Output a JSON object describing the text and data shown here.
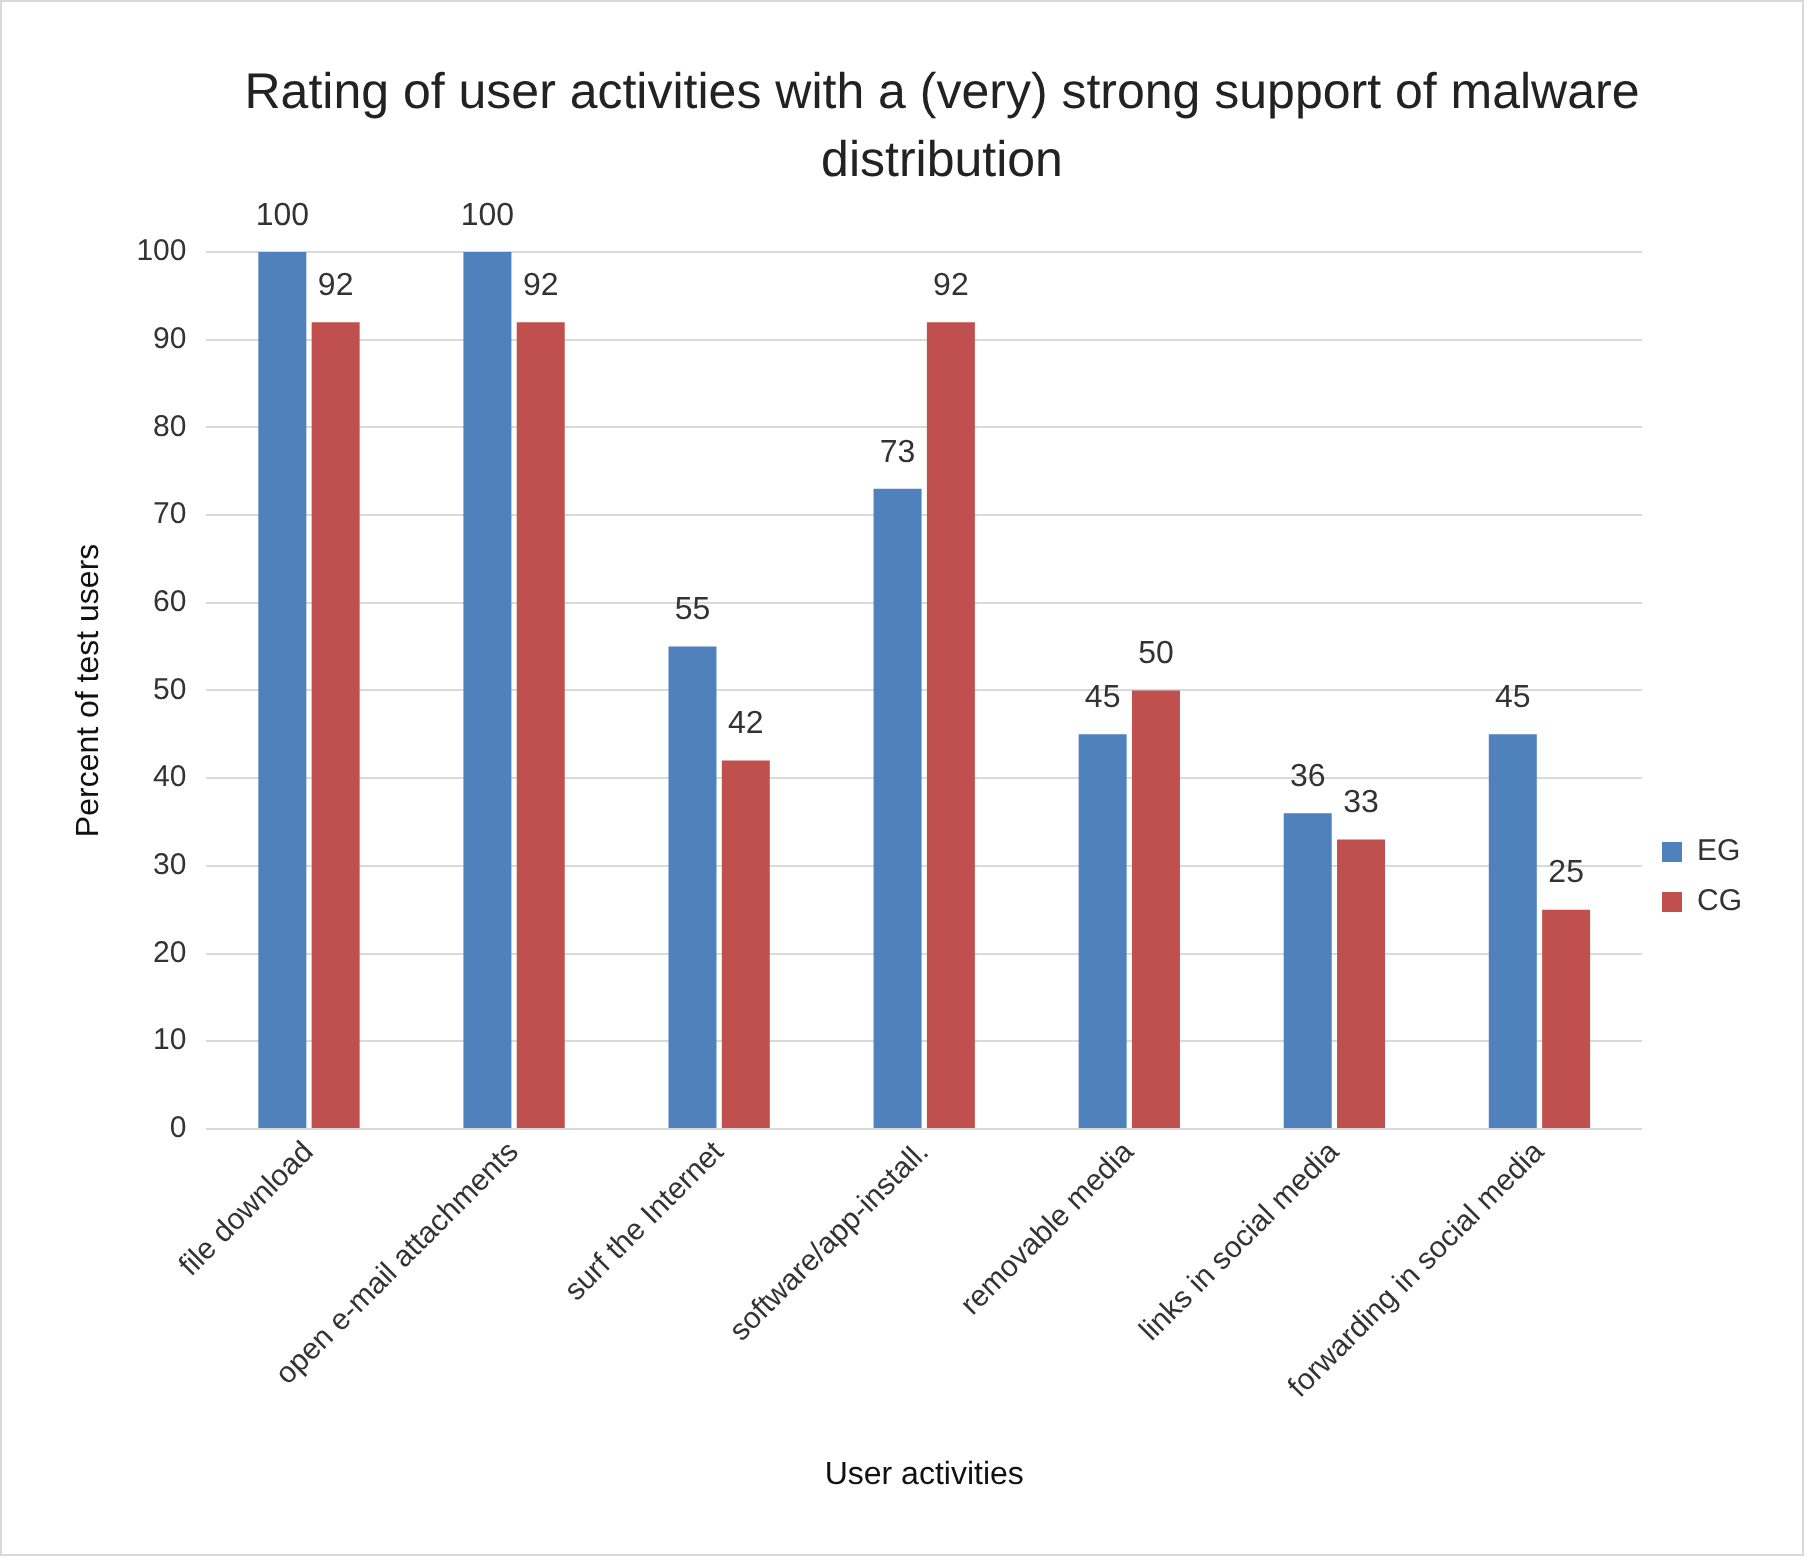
{
  "chart_data": {
    "type": "bar",
    "title": "Rating of user activities with a (very) strong support of malware distribution",
    "xlabel": "User activities",
    "ylabel": "Percent of test users",
    "categories": [
      "file download",
      "open e-mail attachments",
      "surf the Internet",
      "software/app-install.",
      "removable media",
      "links in social media",
      "forwarding in social media"
    ],
    "series": [
      {
        "name": "EG",
        "color": "#4f81bd",
        "values": [
          100,
          100,
          55,
          73,
          45,
          36,
          45
        ]
      },
      {
        "name": "CG",
        "color": "#c0504d",
        "values": [
          92,
          92,
          42,
          92,
          50,
          33,
          25
        ]
      }
    ],
    "ylim": [
      0,
      100
    ],
    "yticks": [
      0,
      10,
      20,
      30,
      40,
      50,
      60,
      70,
      80,
      90,
      100
    ],
    "grid": "y",
    "legend": "right",
    "data_labels": true
  }
}
